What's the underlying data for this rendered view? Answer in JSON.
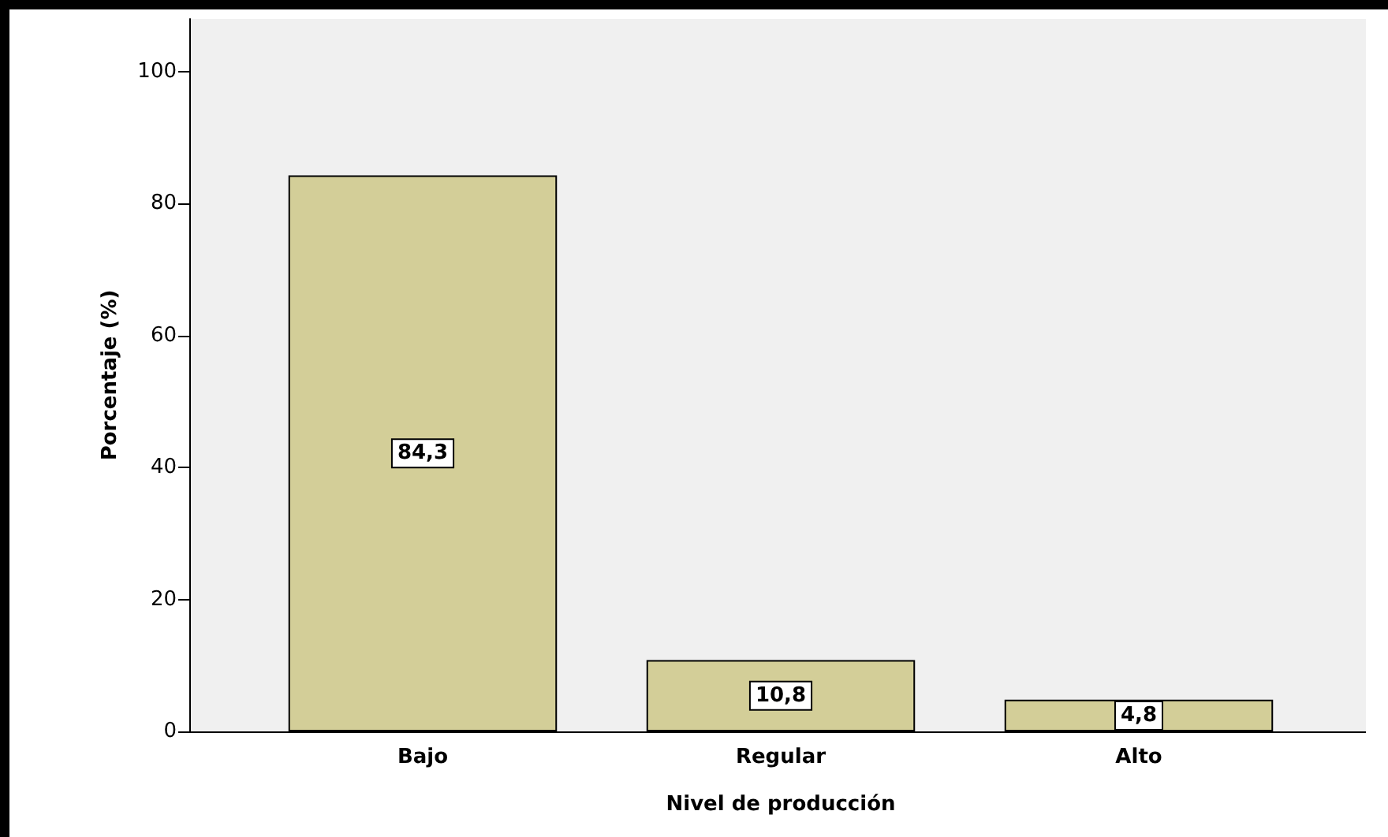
{
  "chart_data": {
    "type": "bar",
    "xlabel": "Nivel de producción",
    "ylabel": "Porcentaje (%)",
    "categories": [
      "Bajo",
      "Regular",
      "Alto"
    ],
    "values": [
      84.3,
      10.8,
      4.8
    ],
    "color": "#d3ce98",
    "value_labels": [
      "84,3",
      "10,8",
      "4,8"
    ],
    "ylim": [
      0,
      108
    ],
    "yticks": [
      0,
      20,
      40,
      60,
      80,
      100
    ],
    "grid": false
  }
}
